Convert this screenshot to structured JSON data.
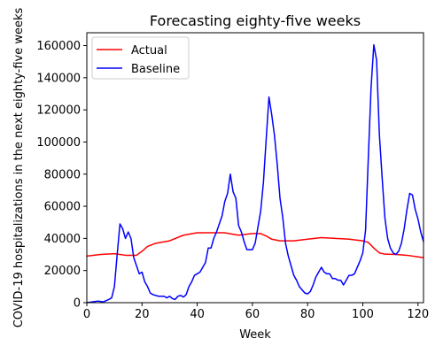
{
  "chart_data": {
    "type": "line",
    "title": "Forecasting eighty-five weeks",
    "xlabel": "Week",
    "ylabel": "COVID-19 hospitalizations in the next eighty-five weeks",
    "xlim": [
      0,
      122
    ],
    "ylim": [
      0,
      168000
    ],
    "xticks": [
      0,
      20,
      40,
      60,
      80,
      100,
      120
    ],
    "yticks": [
      0,
      20000,
      40000,
      60000,
      80000,
      100000,
      120000,
      140000,
      160000
    ],
    "xtick_labels": [
      "0",
      "20",
      "40",
      "60",
      "80",
      "100",
      "120"
    ],
    "ytick_labels": [
      "0",
      "20000",
      "40000",
      "60000",
      "80000",
      "100000",
      "120000",
      "140000",
      "160000"
    ],
    "grid": false,
    "legend_position": "top-left",
    "series": [
      {
        "name": "Actual",
        "color": "#ff0000",
        "x": [
          0,
          5,
          10,
          14,
          18,
          20,
          22,
          25,
          30,
          35,
          40,
          45,
          50,
          55,
          60,
          63,
          65,
          67,
          70,
          75,
          80,
          85,
          90,
          95,
          100,
          102,
          104,
          106,
          108,
          112,
          116,
          120,
          122
        ],
        "y": [
          29000,
          30000,
          30500,
          29500,
          29500,
          32000,
          35000,
          37000,
          38500,
          42000,
          43500,
          43500,
          43500,
          42000,
          43000,
          43000,
          41500,
          39500,
          38500,
          38500,
          39500,
          40500,
          40000,
          39500,
          38500,
          37500,
          34000,
          31000,
          30200,
          30000,
          29500,
          28500,
          28000
        ]
      },
      {
        "name": "Baseline",
        "color": "#0000ff",
        "x": [
          0,
          2,
          4,
          6,
          8,
          9,
          10,
          11,
          12,
          13,
          14,
          15,
          16,
          17,
          18,
          19,
          20,
          21,
          22,
          23,
          24,
          26,
          28,
          29,
          30,
          31,
          32,
          33,
          34,
          35,
          36,
          37,
          38,
          39,
          40,
          41,
          42,
          43,
          44,
          45,
          46,
          47,
          48,
          49,
          50,
          51,
          52,
          53,
          54,
          55,
          56,
          57,
          58,
          59,
          60,
          61,
          62,
          63,
          64,
          65,
          66,
          67,
          68,
          69,
          70,
          71,
          72,
          73,
          74,
          75,
          76,
          77,
          78,
          79,
          80,
          81,
          82,
          83,
          84,
          85,
          86,
          87,
          88,
          89,
          90,
          91,
          92,
          93,
          94,
          95,
          96,
          97,
          98,
          99,
          100,
          101,
          102,
          103,
          104,
          105,
          106,
          107,
          108,
          109,
          110,
          111,
          112,
          113,
          114,
          115,
          116,
          117,
          118,
          119,
          120,
          121,
          122
        ],
        "y": [
          0,
          500,
          1000,
          500,
          2000,
          3000,
          10000,
          30000,
          49000,
          46000,
          40000,
          44000,
          40000,
          28000,
          23000,
          18000,
          19000,
          13000,
          10000,
          6000,
          5000,
          4000,
          4000,
          3000,
          4000,
          2500,
          2000,
          4000,
          4500,
          3500,
          5000,
          10000,
          13000,
          17000,
          18000,
          19000,
          22000,
          25000,
          34000,
          34000,
          40000,
          44000,
          49000,
          54000,
          63000,
          68000,
          80000,
          69000,
          65000,
          48000,
          44000,
          38000,
          33000,
          33000,
          33000,
          37000,
          47000,
          57000,
          75000,
          102000,
          128000,
          117000,
          104000,
          86000,
          65000,
          53000,
          37000,
          29000,
          23000,
          17000,
          14000,
          10000,
          8000,
          6000,
          5500,
          7000,
          11000,
          16000,
          19000,
          22000,
          19000,
          18000,
          18000,
          15000,
          15000,
          14000,
          14000,
          11000,
          14000,
          17000,
          17000,
          18000,
          22000,
          26000,
          31000,
          45000,
          90000,
          134000,
          160500,
          151000,
          105000,
          78000,
          53000,
          40000,
          34000,
          31000,
          30000,
          32000,
          37000,
          46000,
          58000,
          68000,
          67000,
          58000,
          52000,
          44000,
          38000
        ]
      }
    ]
  }
}
